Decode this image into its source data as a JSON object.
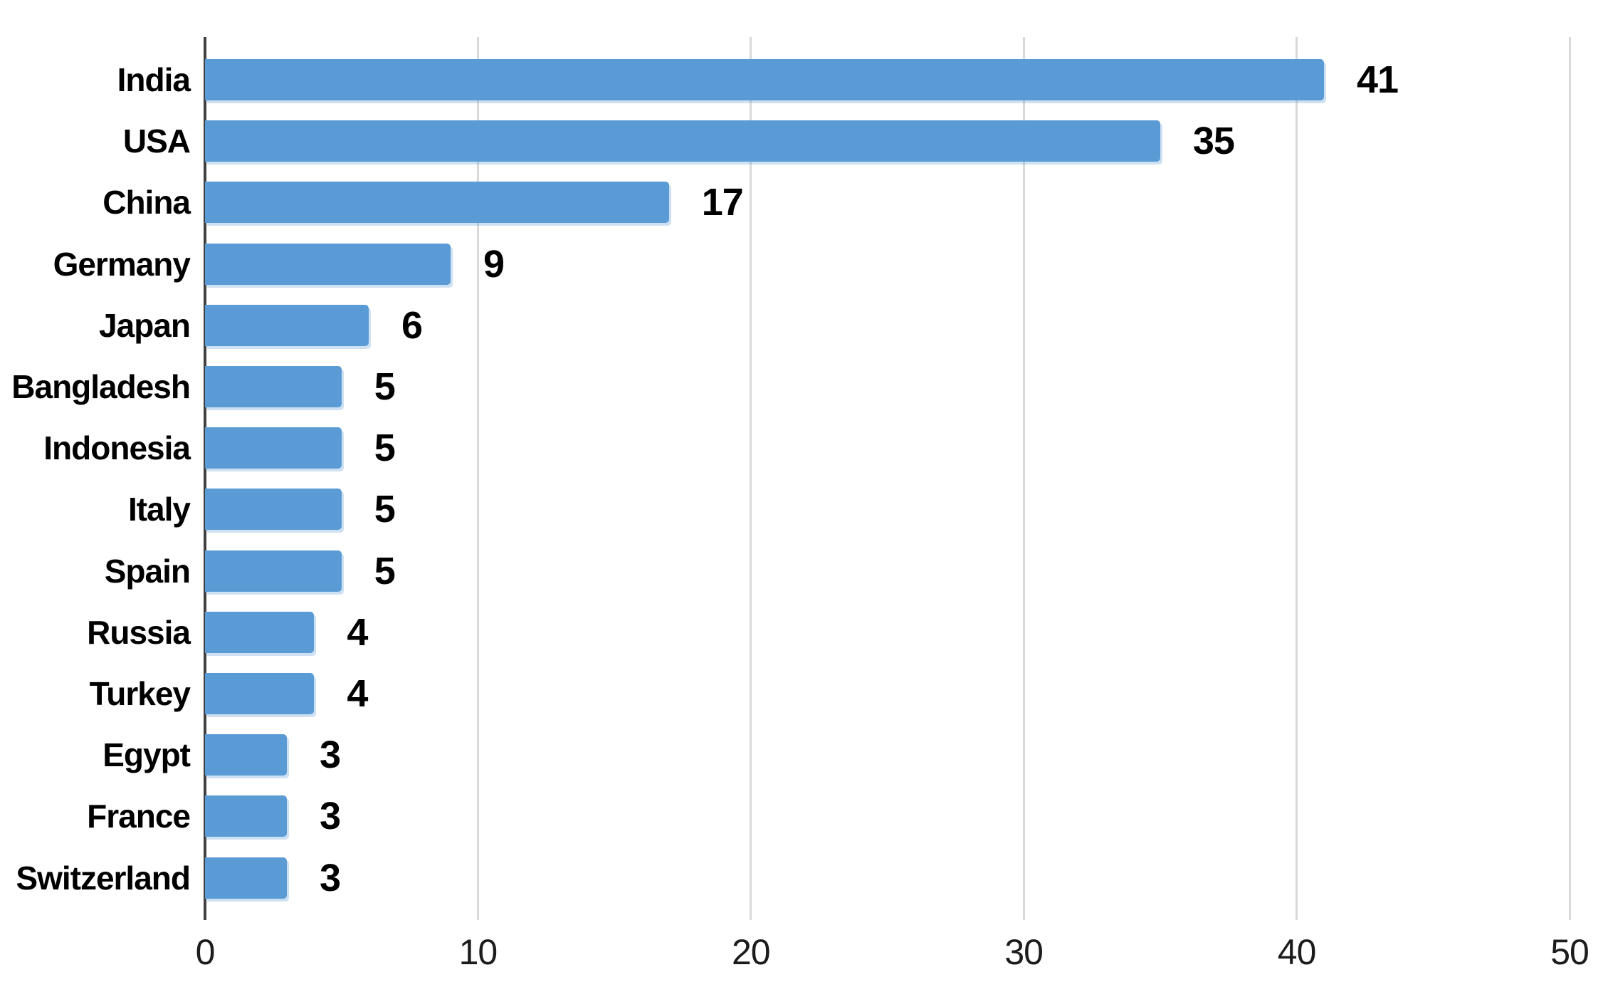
{
  "chart_data": {
    "type": "bar",
    "orientation": "horizontal",
    "title": "",
    "xlabel": "",
    "ylabel": "",
    "categories": [
      "India",
      "USA",
      "China",
      "Germany",
      "Japan",
      "Bangladesh",
      "Indonesia",
      "Italy",
      "Spain",
      "Russia",
      "Turkey",
      "Egypt",
      "France",
      "Switzerland"
    ],
    "values": [
      41,
      35,
      17,
      9,
      6,
      5,
      5,
      5,
      5,
      4,
      4,
      3,
      3,
      3
    ],
    "data_labels": [
      "41",
      "35",
      "17",
      "9",
      "6",
      "5",
      "5",
      "5",
      "5",
      "4",
      "4",
      "3",
      "3",
      "3"
    ],
    "xlim": [
      0,
      50
    ],
    "x_ticks": [
      0,
      10,
      20,
      30,
      40,
      50
    ],
    "grid": "vertical",
    "legend": "none",
    "colors": {
      "bar": "#5B9BD5",
      "gridline": "#D9D9D9",
      "axis_line": "#404040",
      "label_text": "#000000",
      "tick_text": "#1c1c1c",
      "background": "#FFFFFF"
    }
  }
}
